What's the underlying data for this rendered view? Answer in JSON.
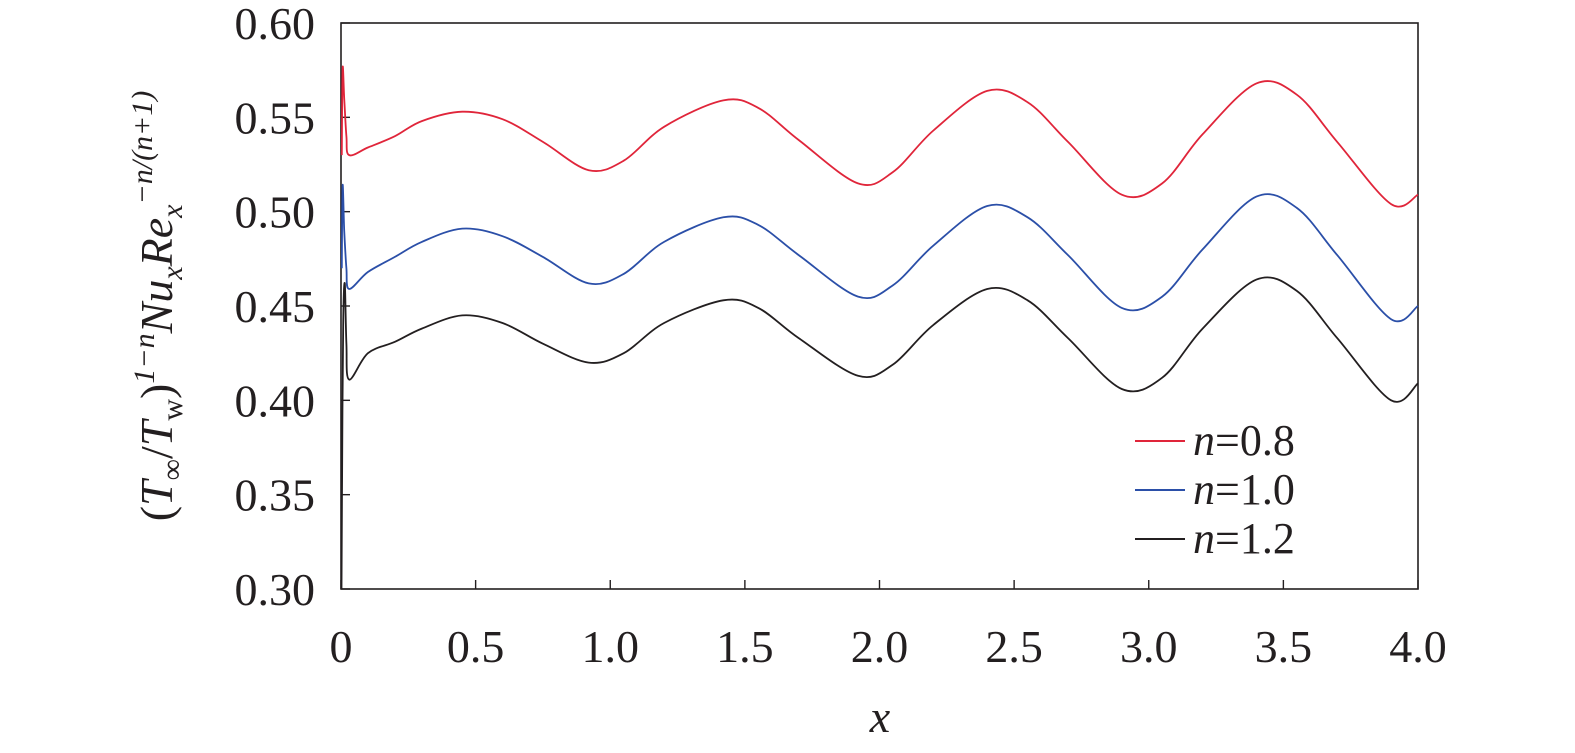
{
  "chart_data": {
    "type": "line",
    "title": "",
    "xlabel": "x",
    "ylabel": {
      "base": "(",
      "t1": "T",
      "t1_sub": "∞",
      "slash": "/",
      "t2": "T",
      "t2_sub": "w",
      "close": ")",
      "exp1": "1−n",
      "nu": "Nu",
      "nu_sub": "x",
      "re": "Re",
      "re_sub": "x",
      "exp2": "−n/(n+1)"
    },
    "xlim": [
      0,
      4.0
    ],
    "ylim": [
      0.3,
      0.6
    ],
    "x_ticks": [
      0,
      0.5,
      1.0,
      1.5,
      2.0,
      2.5,
      3.0,
      3.5,
      4.0
    ],
    "x_tick_labels": [
      "0",
      "0.5",
      "1.0",
      "1.5",
      "2.0",
      "2.5",
      "3.0",
      "3.5",
      "4.0"
    ],
    "y_ticks": [
      0.3,
      0.35,
      0.4,
      0.45,
      0.5,
      0.55,
      0.6
    ],
    "y_tick_labels": [
      "0.30",
      "0.35",
      "0.40",
      "0.45",
      "0.50",
      "0.55",
      "0.60"
    ],
    "grid": false,
    "legend_position": "bottom-right",
    "series": [
      {
        "name": "n=0.8",
        "name_var": "n",
        "name_val": "=0.8",
        "color": "#e0253a",
        "x": [
          0.003,
          0.006,
          0.012,
          0.02,
          0.03,
          0.1,
          0.2,
          0.3,
          0.45,
          0.6,
          0.75,
          0.92,
          1.05,
          1.2,
          1.42,
          1.55,
          1.7,
          1.92,
          2.05,
          2.2,
          2.4,
          2.55,
          2.7,
          2.9,
          3.05,
          3.2,
          3.4,
          3.55,
          3.7,
          3.9,
          4.0
        ],
        "y": [
          0.53,
          0.576,
          0.56,
          0.54,
          0.53,
          0.534,
          0.54,
          0.548,
          0.553,
          0.549,
          0.537,
          0.522,
          0.527,
          0.545,
          0.559,
          0.555,
          0.538,
          0.515,
          0.521,
          0.543,
          0.564,
          0.558,
          0.537,
          0.509,
          0.515,
          0.541,
          0.568,
          0.562,
          0.537,
          0.504,
          0.509
        ]
      },
      {
        "name": "n=1.0",
        "name_var": "n",
        "name_val": "=1.0",
        "color": "#2b4fa8",
        "x": [
          0.003,
          0.006,
          0.012,
          0.02,
          0.03,
          0.1,
          0.2,
          0.3,
          0.45,
          0.6,
          0.75,
          0.92,
          1.05,
          1.2,
          1.42,
          1.55,
          1.7,
          1.92,
          2.05,
          2.2,
          2.4,
          2.55,
          2.7,
          2.9,
          3.05,
          3.2,
          3.4,
          3.55,
          3.7,
          3.9,
          4.0
        ],
        "y": [
          0.47,
          0.514,
          0.49,
          0.47,
          0.459,
          0.468,
          0.476,
          0.484,
          0.491,
          0.487,
          0.476,
          0.462,
          0.467,
          0.484,
          0.497,
          0.493,
          0.477,
          0.455,
          0.461,
          0.482,
          0.503,
          0.497,
          0.477,
          0.449,
          0.455,
          0.48,
          0.508,
          0.502,
          0.477,
          0.443,
          0.45
        ]
      },
      {
        "name": "n=1.2",
        "name_var": "n",
        "name_val": "=1.2",
        "color": "#231f20",
        "x": [
          0.002,
          0.004,
          0.008,
          0.014,
          0.02,
          0.03,
          0.1,
          0.2,
          0.3,
          0.45,
          0.6,
          0.75,
          0.92,
          1.05,
          1.2,
          1.42,
          1.55,
          1.7,
          1.92,
          2.05,
          2.2,
          2.4,
          2.55,
          2.7,
          2.9,
          3.05,
          3.2,
          3.4,
          3.55,
          3.7,
          3.9,
          4.0
        ],
        "y": [
          0.3,
          0.36,
          0.44,
          0.462,
          0.43,
          0.411,
          0.425,
          0.431,
          0.438,
          0.445,
          0.441,
          0.43,
          0.42,
          0.425,
          0.441,
          0.453,
          0.449,
          0.433,
          0.413,
          0.419,
          0.44,
          0.459,
          0.453,
          0.433,
          0.406,
          0.412,
          0.438,
          0.464,
          0.458,
          0.433,
          0.4,
          0.409
        ]
      }
    ]
  }
}
